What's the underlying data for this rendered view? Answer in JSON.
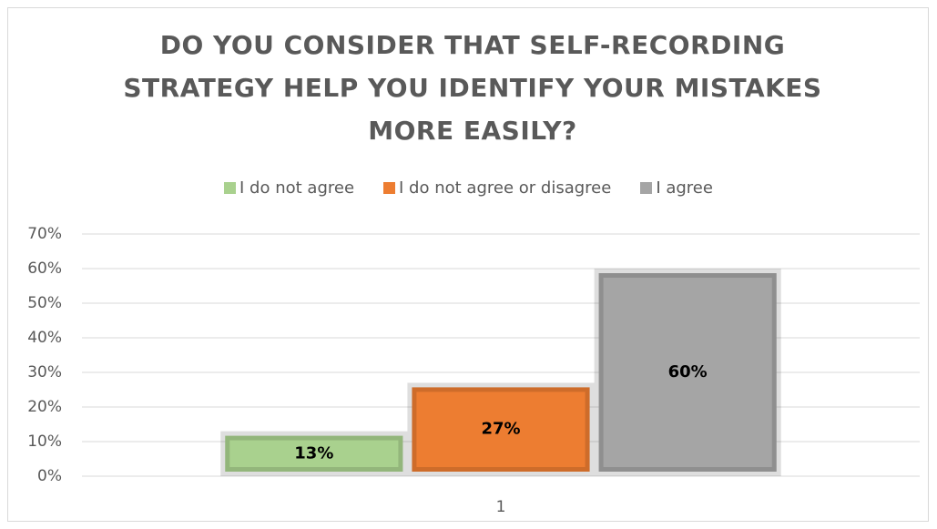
{
  "chart_data": {
    "type": "bar",
    "title": "DO YOU CONSIDER THAT SELF-RECORDING STRATEGY HELP YOU IDENTIFY YOUR MISTAKES MORE EASILY?",
    "categories": [
      "1"
    ],
    "series": [
      {
        "name": "I do not agree",
        "color": "#a9d18e",
        "values": [
          13
        ],
        "value_labels": [
          "13%"
        ]
      },
      {
        "name": "I do not agree or disagree",
        "color": "#ed7d31",
        "values": [
          27
        ],
        "value_labels": [
          "27%"
        ]
      },
      {
        "name": "I agree",
        "color": "#a5a5a5",
        "values": [
          60
        ],
        "value_labels": [
          "60%"
        ]
      }
    ],
    "ylim": [
      0,
      70
    ],
    "yticks": [
      {
        "value": 0,
        "label": "0%"
      },
      {
        "value": 10,
        "label": "10%"
      },
      {
        "value": 20,
        "label": "20%"
      },
      {
        "value": 30,
        "label": "30%"
      },
      {
        "value": 40,
        "label": "40%"
      },
      {
        "value": 50,
        "label": "50%"
      },
      {
        "value": 60,
        "label": "60%"
      },
      {
        "value": 70,
        "label": "70%"
      }
    ],
    "grid": true,
    "legend": "top"
  }
}
